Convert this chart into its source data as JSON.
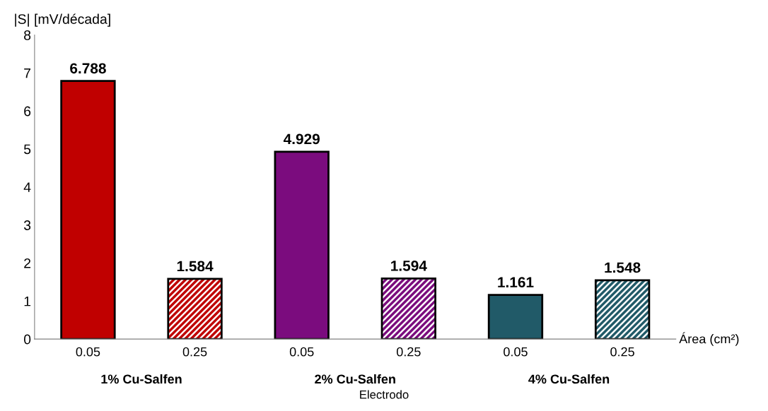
{
  "chart_data": {
    "type": "bar",
    "categories": [
      "0.05",
      "0.25",
      "0.05",
      "0.25",
      "0.05",
      "0.25"
    ],
    "series": [
      {
        "colors": [
          "#c00000",
          null,
          "#7b0c7e",
          null,
          "#215a68",
          null
        ],
        "values": [
          6.788,
          null,
          4.929,
          null,
          1.161,
          null
        ]
      },
      {
        "colors": [
          null,
          "#c00000",
          null,
          "#7b0c7e",
          null,
          "#215a68"
        ],
        "values": [
          null,
          1.584,
          null,
          1.594,
          null,
          1.548
        ]
      }
    ],
    "ylabel": "|S| [mV/década]",
    "xlabel": "Electrodo",
    "annotations": [
      "Área (cm²)",
      "1% Cu-Salfen",
      "2% Cu-Salfen",
      "4% Cu-Salfen"
    ],
    "ylim": [
      0,
      8
    ],
    "yticks": [
      0,
      1,
      2,
      3,
      4,
      5,
      6,
      7,
      8
    ],
    "data_labels": true,
    "grid": false,
    "legend": false
  }
}
